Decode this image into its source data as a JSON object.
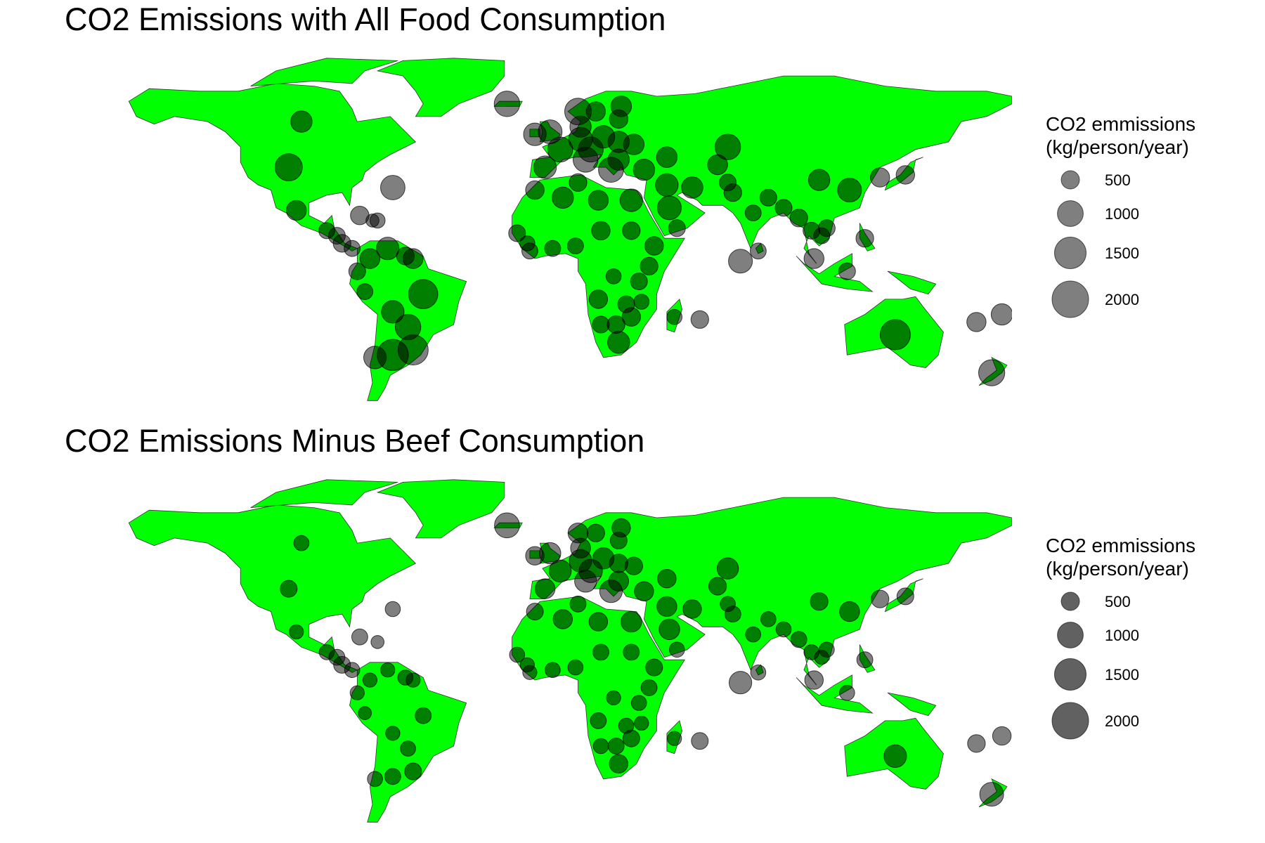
{
  "panels": [
    {
      "title": "CO2 Emissions with All Food Consumption",
      "legend": {
        "title_line1": "CO2 emmissions",
        "title_line2": "(kg/person/year)",
        "entries": [
          {
            "label": "500",
            "value": 500
          },
          {
            "label": "1000",
            "value": 1000
          },
          {
            "label": "1500",
            "value": 1500
          },
          {
            "label": "2000",
            "value": 2000
          }
        ]
      }
    },
    {
      "title": "CO2 Emissions Minus Beef Consumption",
      "legend": {
        "title_line1": "CO2 emmissions",
        "title_line2": "(kg/person/year)",
        "entries": [
          {
            "label": "500",
            "value": 500
          },
          {
            "label": "1000",
            "value": 1000
          },
          {
            "label": "1500",
            "value": 1500
          },
          {
            "label": "2000",
            "value": 2000
          }
        ]
      }
    }
  ],
  "colors": {
    "land": "#00ff00",
    "border": "#333333",
    "bubble": "#000000",
    "background": "#ffffff"
  },
  "chart_data": [
    {
      "type": "bubble-map",
      "title": "CO2 Emissions with All Food Consumption",
      "size_legend": [
        500,
        1000,
        1500,
        2000
      ],
      "points": [
        {
          "lon": -100,
          "lat": 58,
          "value": 800
        },
        {
          "lon": -105,
          "lat": 40,
          "value": 1300
        },
        {
          "lon": -64,
          "lat": 32,
          "value": 1050
        },
        {
          "lon": -102,
          "lat": 23,
          "value": 700
        },
        {
          "lon": -77,
          "lat": 21,
          "value": 600
        },
        {
          "lon": -90,
          "lat": 15,
          "value": 450
        },
        {
          "lon": -86,
          "lat": 13,
          "value": 500
        },
        {
          "lon": -84,
          "lat": 10,
          "value": 550
        },
        {
          "lon": -80,
          "lat": 8,
          "value": 450
        },
        {
          "lon": -72,
          "lat": 19,
          "value": 300
        },
        {
          "lon": -70,
          "lat": 19,
          "value": 400
        },
        {
          "lon": -66,
          "lat": 8,
          "value": 900
        },
        {
          "lon": -59,
          "lat": 5,
          "value": 550
        },
        {
          "lon": -56,
          "lat": 4,
          "value": 700
        },
        {
          "lon": -73,
          "lat": 4,
          "value": 700
        },
        {
          "lon": -78,
          "lat": -1,
          "value": 500
        },
        {
          "lon": -75,
          "lat": -9,
          "value": 450
        },
        {
          "lon": -52,
          "lat": -10,
          "value": 1500
        },
        {
          "lon": -64,
          "lat": -17,
          "value": 900
        },
        {
          "lon": -58,
          "lat": -23,
          "value": 1150
        },
        {
          "lon": -56,
          "lat": -32,
          "value": 1600
        },
        {
          "lon": -64,
          "lat": -34,
          "value": 1700
        },
        {
          "lon": -71,
          "lat": -35,
          "value": 900
        },
        {
          "lon": -19,
          "lat": 65,
          "value": 1150
        },
        {
          "lon": 9,
          "lat": 62,
          "value": 1250
        },
        {
          "lon": 16,
          "lat": 62,
          "value": 650
        },
        {
          "lon": 26,
          "lat": 64,
          "value": 750
        },
        {
          "lon": 25,
          "lat": 59,
          "value": 600
        },
        {
          "lon": 10,
          "lat": 56,
          "value": 800
        },
        {
          "lon": -8,
          "lat": 53,
          "value": 900
        },
        {
          "lon": -2,
          "lat": 54,
          "value": 1000
        },
        {
          "lon": 2,
          "lat": 47,
          "value": 1100
        },
        {
          "lon": 10,
          "lat": 51,
          "value": 1000
        },
        {
          "lon": 14,
          "lat": 47,
          "value": 1100
        },
        {
          "lon": 19,
          "lat": 52,
          "value": 900
        },
        {
          "lon": 25,
          "lat": 50,
          "value": 800
        },
        {
          "lon": 31,
          "lat": 49,
          "value": 750
        },
        {
          "lon": -4,
          "lat": 40,
          "value": 900
        },
        {
          "lon": 12,
          "lat": 43,
          "value": 1100
        },
        {
          "lon": 22,
          "lat": 39,
          "value": 1100
        },
        {
          "lon": 25,
          "lat": 43,
          "value": 800
        },
        {
          "lon": 35,
          "lat": 39,
          "value": 800
        },
        {
          "lon": 44,
          "lat": 44,
          "value": 750
        },
        {
          "lon": 44,
          "lat": 33,
          "value": 900
        },
        {
          "lon": 54,
          "lat": 32,
          "value": 800
        },
        {
          "lon": 45,
          "lat": 24,
          "value": 1000
        },
        {
          "lon": 48,
          "lat": 16,
          "value": 500
        },
        {
          "lon": 68,
          "lat": 48,
          "value": 1150
        },
        {
          "lon": 64,
          "lat": 41,
          "value": 700
        },
        {
          "lon": 68,
          "lat": 34,
          "value": 500
        },
        {
          "lon": 70,
          "lat": 30,
          "value": 550
        },
        {
          "lon": 78,
          "lat": 22,
          "value": 450
        },
        {
          "lon": 80,
          "lat": 7,
          "value": 450
        },
        {
          "lon": 73,
          "lat": 3,
          "value": 1000
        },
        {
          "lon": 84,
          "lat": 28,
          "value": 500
        },
        {
          "lon": 90,
          "lat": 24,
          "value": 500
        },
        {
          "lon": 104,
          "lat": 35,
          "value": 800
        },
        {
          "lon": 116,
          "lat": 31,
          "value": 1000
        },
        {
          "lon": 128,
          "lat": 36,
          "value": 650
        },
        {
          "lon": 138,
          "lat": 37,
          "value": 600
        },
        {
          "lon": 96,
          "lat": 20,
          "value": 550
        },
        {
          "lon": 101,
          "lat": 15,
          "value": 500
        },
        {
          "lon": 105,
          "lat": 13,
          "value": 450
        },
        {
          "lon": 107,
          "lat": 16,
          "value": 500
        },
        {
          "lon": 102,
          "lat": 4,
          "value": 700
        },
        {
          "lon": 115,
          "lat": -1,
          "value": 500
        },
        {
          "lon": 122,
          "lat": 12,
          "value": 550
        },
        {
          "lon": -8,
          "lat": 31,
          "value": 600
        },
        {
          "lon": 3,
          "lat": 28,
          "value": 800
        },
        {
          "lon": 9,
          "lat": 34,
          "value": 550
        },
        {
          "lon": 17,
          "lat": 27,
          "value": 700
        },
        {
          "lon": 30,
          "lat": 27,
          "value": 900
        },
        {
          "lon": -15,
          "lat": 14,
          "value": 500
        },
        {
          "lon": -11,
          "lat": 10,
          "value": 400
        },
        {
          "lon": -10,
          "lat": 7,
          "value": 450
        },
        {
          "lon": -1,
          "lat": 8,
          "value": 450
        },
        {
          "lon": 8,
          "lat": 9,
          "value": 450
        },
        {
          "lon": 18,
          "lat": 15,
          "value": 600
        },
        {
          "lon": 30,
          "lat": 15,
          "value": 550
        },
        {
          "lon": 39,
          "lat": 9,
          "value": 600
        },
        {
          "lon": 37,
          "lat": 1,
          "value": 550
        },
        {
          "lon": 33,
          "lat": -5,
          "value": 500
        },
        {
          "lon": 23,
          "lat": -3,
          "value": 400
        },
        {
          "lon": 17,
          "lat": -12,
          "value": 600
        },
        {
          "lon": 28,
          "lat": -14,
          "value": 500
        },
        {
          "lon": 34,
          "lat": -13,
          "value": 400
        },
        {
          "lon": 30,
          "lat": -19,
          "value": 600
        },
        {
          "lon": 18,
          "lat": -22,
          "value": 500
        },
        {
          "lon": 24,
          "lat": -22,
          "value": 550
        },
        {
          "lon": 25,
          "lat": -29,
          "value": 850
        },
        {
          "lon": 47,
          "lat": -19,
          "value": 400
        },
        {
          "lon": 57,
          "lat": -20,
          "value": 550
        },
        {
          "lon": 134,
          "lat": -26,
          "value": 1600
        },
        {
          "lon": 166,
          "lat": -21,
          "value": 650
        },
        {
          "lon": 172,
          "lat": -41,
          "value": 1200
        },
        {
          "lon": 176,
          "lat": -18,
          "value": 800
        }
      ]
    },
    {
      "type": "bubble-map",
      "title": "CO2 Emissions Minus Beef Consumption",
      "size_legend": [
        500,
        1000,
        1500,
        2000
      ],
      "points": [
        {
          "lon": -100,
          "lat": 58,
          "value": 400
        },
        {
          "lon": -105,
          "lat": 40,
          "value": 500
        },
        {
          "lon": -64,
          "lat": 32,
          "value": 400
        },
        {
          "lon": -102,
          "lat": 23,
          "value": 350
        },
        {
          "lon": -77,
          "lat": 21,
          "value": 450
        },
        {
          "lon": -90,
          "lat": 15,
          "value": 400
        },
        {
          "lon": -86,
          "lat": 13,
          "value": 450
        },
        {
          "lon": -84,
          "lat": 10,
          "value": 500
        },
        {
          "lon": -80,
          "lat": 8,
          "value": 400
        },
        {
          "lon": -70,
          "lat": 19,
          "value": 300
        },
        {
          "lon": -66,
          "lat": 8,
          "value": 350
        },
        {
          "lon": -59,
          "lat": 5,
          "value": 400
        },
        {
          "lon": -56,
          "lat": 4,
          "value": 350
        },
        {
          "lon": -73,
          "lat": 4,
          "value": 350
        },
        {
          "lon": -78,
          "lat": -1,
          "value": 350
        },
        {
          "lon": -75,
          "lat": -9,
          "value": 300
        },
        {
          "lon": -52,
          "lat": -10,
          "value": 450
        },
        {
          "lon": -64,
          "lat": -17,
          "value": 350
        },
        {
          "lon": -58,
          "lat": -23,
          "value": 400
        },
        {
          "lon": -56,
          "lat": -32,
          "value": 500
        },
        {
          "lon": -64,
          "lat": -34,
          "value": 450
        },
        {
          "lon": -71,
          "lat": -35,
          "value": 400
        },
        {
          "lon": -19,
          "lat": 65,
          "value": 1100
        },
        {
          "lon": 9,
          "lat": 62,
          "value": 700
        },
        {
          "lon": 16,
          "lat": 62,
          "value": 550
        },
        {
          "lon": 26,
          "lat": 64,
          "value": 600
        },
        {
          "lon": 25,
          "lat": 59,
          "value": 500
        },
        {
          "lon": 10,
          "lat": 56,
          "value": 700
        },
        {
          "lon": -8,
          "lat": 53,
          "value": 600
        },
        {
          "lon": -2,
          "lat": 54,
          "value": 800
        },
        {
          "lon": 2,
          "lat": 47,
          "value": 850
        },
        {
          "lon": 10,
          "lat": 51,
          "value": 900
        },
        {
          "lon": 14,
          "lat": 47,
          "value": 950
        },
        {
          "lon": 19,
          "lat": 52,
          "value": 800
        },
        {
          "lon": 25,
          "lat": 50,
          "value": 600
        },
        {
          "lon": 31,
          "lat": 49,
          "value": 550
        },
        {
          "lon": -4,
          "lat": 40,
          "value": 700
        },
        {
          "lon": 12,
          "lat": 43,
          "value": 850
        },
        {
          "lon": 22,
          "lat": 39,
          "value": 900
        },
        {
          "lon": 25,
          "lat": 43,
          "value": 700
        },
        {
          "lon": 35,
          "lat": 39,
          "value": 650
        },
        {
          "lon": 44,
          "lat": 44,
          "value": 600
        },
        {
          "lon": 44,
          "lat": 33,
          "value": 700
        },
        {
          "lon": 54,
          "lat": 32,
          "value": 600
        },
        {
          "lon": 45,
          "lat": 24,
          "value": 750
        },
        {
          "lon": 48,
          "lat": 16,
          "value": 400
        },
        {
          "lon": 68,
          "lat": 48,
          "value": 800
        },
        {
          "lon": 64,
          "lat": 41,
          "value": 550
        },
        {
          "lon": 68,
          "lat": 34,
          "value": 400
        },
        {
          "lon": 70,
          "lat": 30,
          "value": 450
        },
        {
          "lon": 78,
          "lat": 22,
          "value": 400
        },
        {
          "lon": 80,
          "lat": 7,
          "value": 400
        },
        {
          "lon": 73,
          "lat": 3,
          "value": 900
        },
        {
          "lon": 84,
          "lat": 28,
          "value": 400
        },
        {
          "lon": 90,
          "lat": 24,
          "value": 400
        },
        {
          "lon": 104,
          "lat": 35,
          "value": 550
        },
        {
          "lon": 116,
          "lat": 31,
          "value": 700
        },
        {
          "lon": 128,
          "lat": 36,
          "value": 550
        },
        {
          "lon": 138,
          "lat": 37,
          "value": 500
        },
        {
          "lon": 96,
          "lat": 20,
          "value": 450
        },
        {
          "lon": 101,
          "lat": 15,
          "value": 400
        },
        {
          "lon": 105,
          "lat": 13,
          "value": 350
        },
        {
          "lon": 107,
          "lat": 16,
          "value": 400
        },
        {
          "lon": 102,
          "lat": 4,
          "value": 600
        },
        {
          "lon": 115,
          "lat": -1,
          "value": 400
        },
        {
          "lon": 122,
          "lat": 12,
          "value": 450
        },
        {
          "lon": -8,
          "lat": 31,
          "value": 500
        },
        {
          "lon": 3,
          "lat": 28,
          "value": 650
        },
        {
          "lon": 9,
          "lat": 34,
          "value": 450
        },
        {
          "lon": 17,
          "lat": 27,
          "value": 600
        },
        {
          "lon": 30,
          "lat": 27,
          "value": 750
        },
        {
          "lon": -15,
          "lat": 14,
          "value": 400
        },
        {
          "lon": -11,
          "lat": 10,
          "value": 350
        },
        {
          "lon": -10,
          "lat": 7,
          "value": 350
        },
        {
          "lon": -1,
          "lat": 8,
          "value": 400
        },
        {
          "lon": 8,
          "lat": 9,
          "value": 400
        },
        {
          "lon": 18,
          "lat": 15,
          "value": 450
        },
        {
          "lon": 30,
          "lat": 15,
          "value": 450
        },
        {
          "lon": 39,
          "lat": 9,
          "value": 500
        },
        {
          "lon": 37,
          "lat": 1,
          "value": 450
        },
        {
          "lon": 33,
          "lat": -5,
          "value": 400
        },
        {
          "lon": 23,
          "lat": -3,
          "value": 350
        },
        {
          "lon": 17,
          "lat": -12,
          "value": 450
        },
        {
          "lon": 28,
          "lat": -14,
          "value": 400
        },
        {
          "lon": 34,
          "lat": -13,
          "value": 350
        },
        {
          "lon": 30,
          "lat": -19,
          "value": 500
        },
        {
          "lon": 18,
          "lat": -22,
          "value": 400
        },
        {
          "lon": 24,
          "lat": -22,
          "value": 450
        },
        {
          "lon": 25,
          "lat": -29,
          "value": 600
        },
        {
          "lon": 47,
          "lat": -19,
          "value": 350
        },
        {
          "lon": 57,
          "lat": -20,
          "value": 500
        },
        {
          "lon": 134,
          "lat": -26,
          "value": 900
        },
        {
          "lon": 166,
          "lat": -21,
          "value": 550
        },
        {
          "lon": 172,
          "lat": -41,
          "value": 1000
        },
        {
          "lon": 176,
          "lat": -18,
          "value": 600
        }
      ]
    }
  ]
}
